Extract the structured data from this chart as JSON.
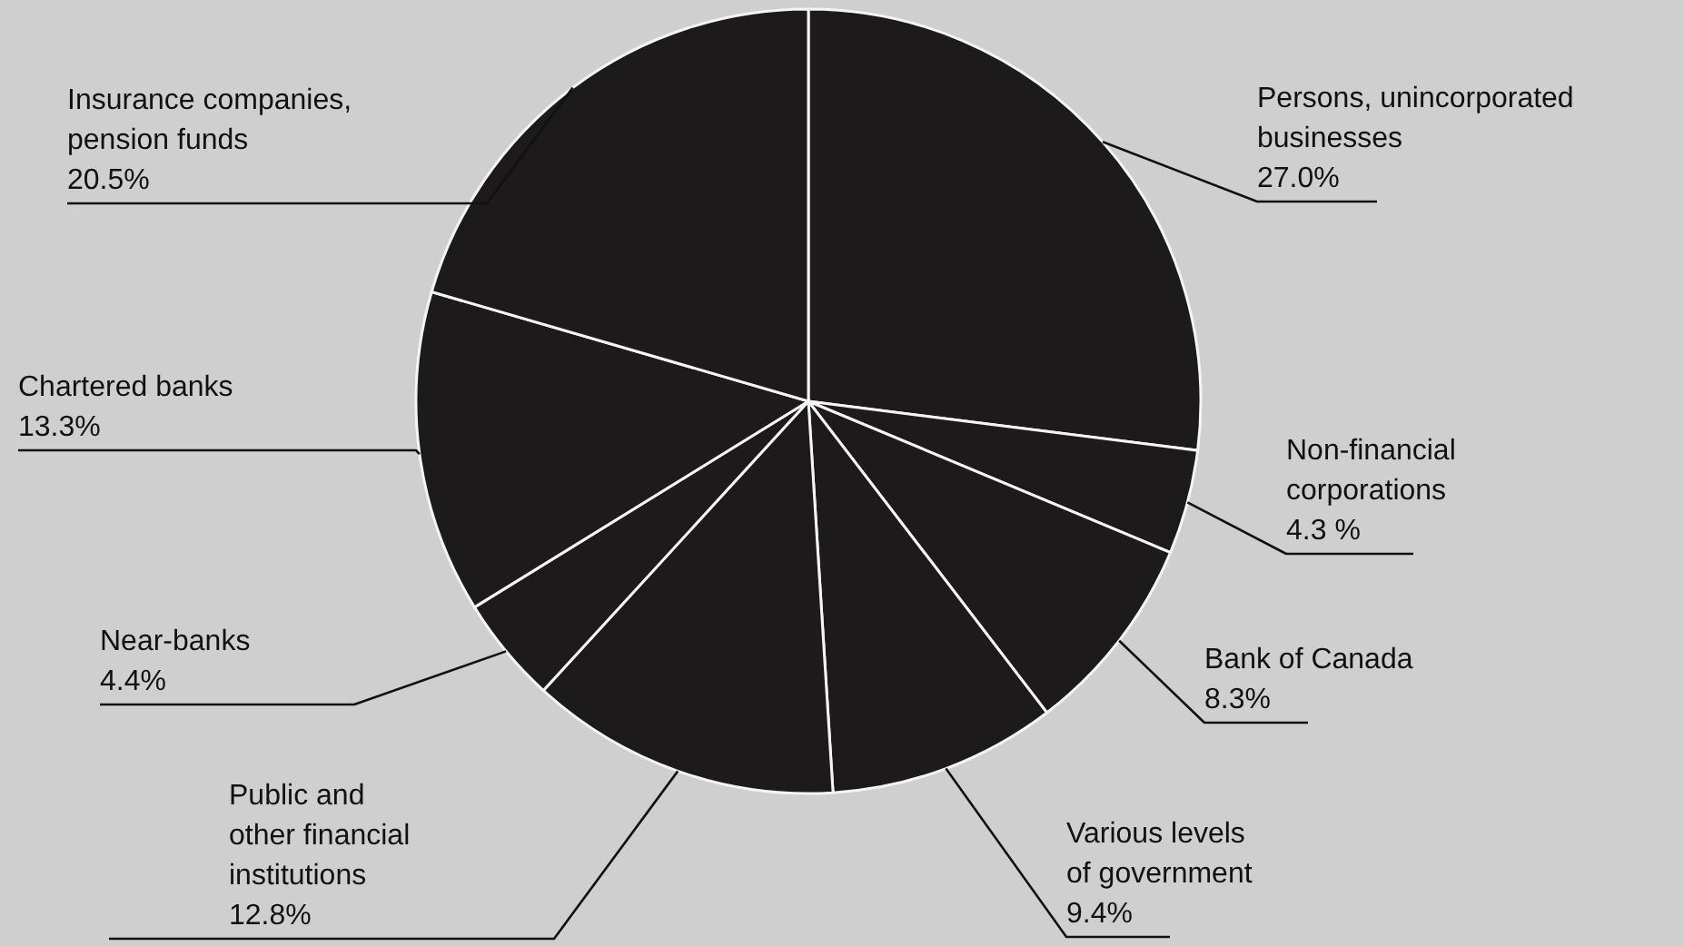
{
  "chart_data": {
    "type": "pie",
    "categories": [
      "Persons, unincorporated\nbusinesses",
      "Non-financial\ncorporations",
      "Bank of Canada",
      "Various levels\nof government",
      "Public and\nother financial\ninstitutions",
      "Near-banks",
      "Chartered banks",
      "Insurance companies,\npension funds"
    ],
    "values": [
      27.0,
      4.3,
      8.3,
      9.4,
      12.8,
      4.4,
      13.3,
      20.5
    ],
    "value_labels": [
      "27.0%",
      "4.3 %",
      "8.3%",
      "9.4%",
      "12.8%",
      "4.4%",
      "13.3%",
      "20.5%"
    ],
    "colors": [
      "#1c1a1b",
      "#1c1a1b",
      "#1c1a1b",
      "#1c1a1b",
      "#1c1a1b",
      "#1c1a1b",
      "#1c1a1b",
      "#1c1a1b"
    ]
  }
}
